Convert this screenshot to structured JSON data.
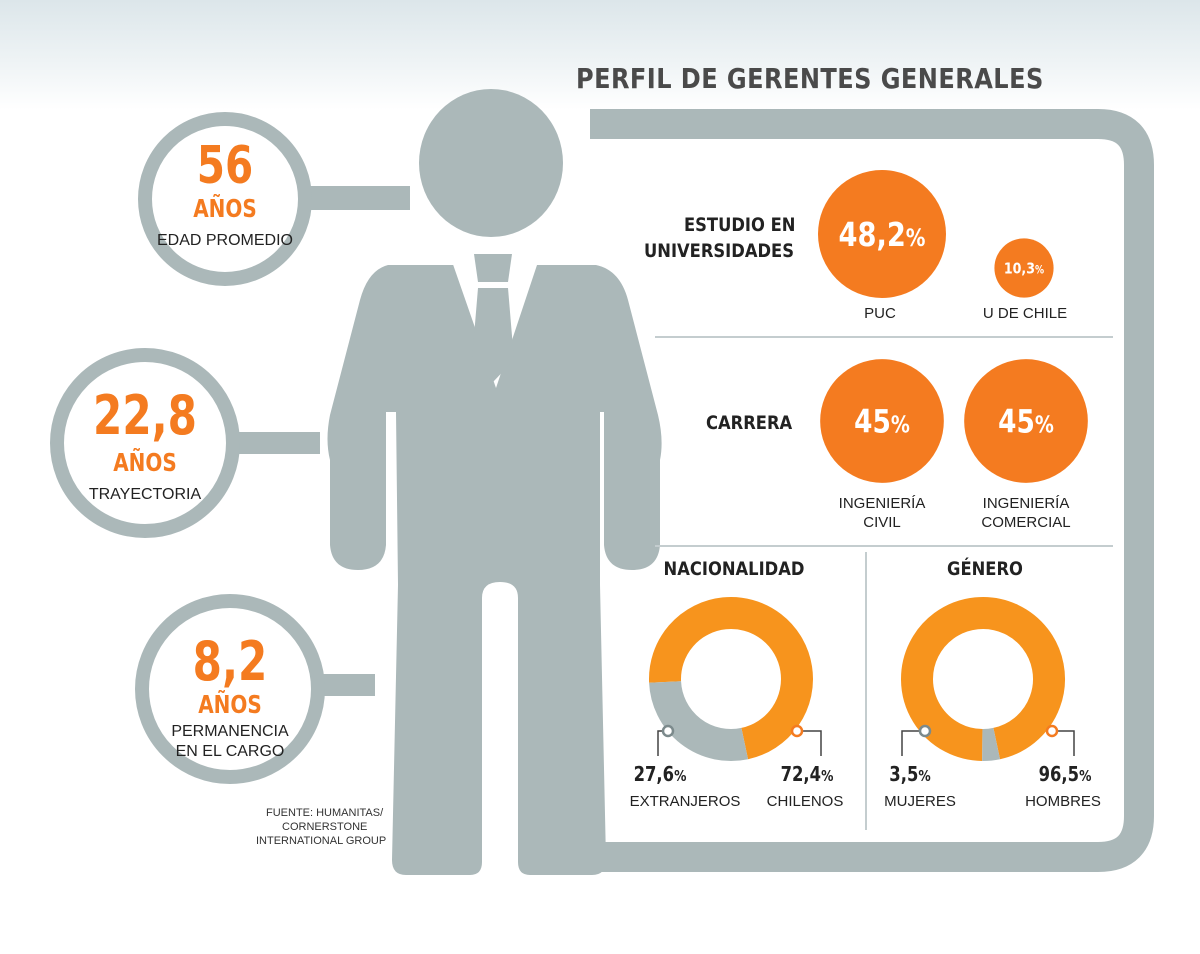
{
  "title": "PERFIL DE GERENTES GENERALES",
  "source": "FUENTE: HUMANITAS/ CORNERSTONE INTERNATIONAL GROUP",
  "source_lines": [
    "FUENTE: HUMANITAS/",
    "CORNERSTONE",
    "INTERNATIONAL GROUP"
  ],
  "stats": [
    {
      "value": "56",
      "unit": "AÑOS",
      "label": "EDAD PROMEDIO",
      "label_lines": [
        "EDAD PROMEDIO"
      ]
    },
    {
      "value": "22,8",
      "unit": "AÑOS",
      "label": "TRAYECTORIA",
      "label_lines": [
        "TRAYECTORIA"
      ]
    },
    {
      "value": "8,2",
      "unit": "AÑOS",
      "label": "PERMANENCIA EN EL CARGO",
      "label_lines": [
        "PERMANENCIA",
        "EN EL CARGO"
      ]
    }
  ],
  "colors": {
    "orange": "#f47b20",
    "orange_light": "#f7941d",
    "gray": "#abb8b9",
    "dark_text": "#222222"
  },
  "chart_data": [
    {
      "type": "bar",
      "title": "ESTUDIO EN UNIVERSIDADES",
      "title_lines": [
        "ESTUDIO EN",
        "UNIVERSIDADES"
      ],
      "categories": [
        "PUC",
        "U DE CHILE"
      ],
      "values": [
        48.2,
        10.3
      ],
      "value_labels": [
        "48,2",
        "10,3"
      ],
      "unit": "%"
    },
    {
      "type": "bar",
      "title": "CARRERA",
      "categories": [
        "INGENIERÍA CIVIL",
        "INGENIERÍA COMERCIAL"
      ],
      "category_lines": [
        [
          "INGENIERÍA",
          "CIVIL"
        ],
        [
          "INGENIERÍA",
          "COMERCIAL"
        ]
      ],
      "values": [
        45,
        45
      ],
      "value_labels": [
        "45",
        "45"
      ],
      "unit": "%"
    },
    {
      "type": "pie",
      "title": "NACIONALIDAD",
      "categories": [
        "EXTRANJEROS",
        "CHILENOS"
      ],
      "values": [
        27.6,
        72.4
      ],
      "value_labels": [
        "27,6",
        "72,4"
      ],
      "unit": "%"
    },
    {
      "type": "pie",
      "title": "GÉNERO",
      "categories": [
        "MUJERES",
        "HOMBRES"
      ],
      "values": [
        3.5,
        96.5
      ],
      "value_labels": [
        "3,5",
        "96,5"
      ],
      "unit": "%"
    }
  ]
}
